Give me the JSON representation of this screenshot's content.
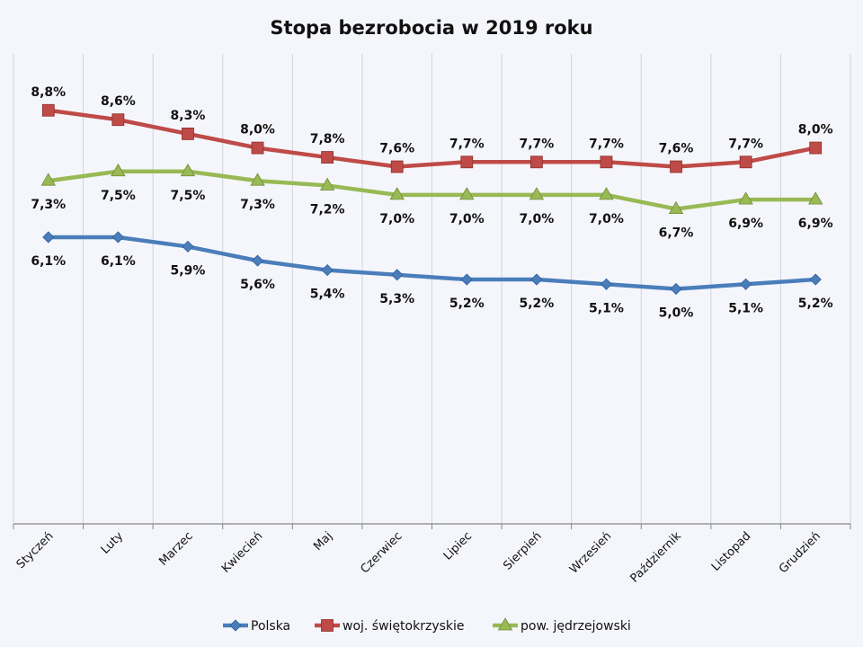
{
  "chart_data": {
    "type": "line",
    "title": "Stopa bezrobocia w 2019 roku",
    "xlabel": "",
    "ylabel": "",
    "ylim": [
      0,
      10
    ],
    "y_axis_visible": false,
    "grid": "vertical",
    "legend_position": "bottom",
    "categories": [
      "Styczeń",
      "Luty",
      "Marzec",
      "Kwiecień",
      "Maj",
      "Czerwiec",
      "Lipiec",
      "Sierpień",
      "Wrzesień",
      "Październik",
      "Listopad",
      "Grudzień"
    ],
    "series": [
      {
        "name": "Polska",
        "color": "#4a7ebb",
        "marker": "diamond",
        "label_position": "below",
        "values": [
          6.1,
          6.1,
          5.9,
          5.6,
          5.4,
          5.3,
          5.2,
          5.2,
          5.1,
          5.0,
          5.1,
          5.2
        ],
        "labels": [
          "6,1%",
          "6,1%",
          "5,9%",
          "5,6%",
          "5,4%",
          "5,3%",
          "5,2%",
          "5,2%",
          "5,1%",
          "5,0%",
          "5,1%",
          "5,2%"
        ]
      },
      {
        "name": "woj. świętokrzyskie",
        "color": "#be4b48",
        "marker": "square",
        "label_position": "above",
        "values": [
          8.8,
          8.6,
          8.3,
          8.0,
          7.8,
          7.6,
          7.7,
          7.7,
          7.7,
          7.6,
          7.7,
          8.0
        ],
        "labels": [
          "8,8%",
          "8,6%",
          "8,3%",
          "8,0%",
          "7,8%",
          "7,6%",
          "7,7%",
          "7,7%",
          "7,7%",
          "7,6%",
          "7,7%",
          "8,0%"
        ]
      },
      {
        "name": "pow. jędrzejowski",
        "color": "#98b954",
        "marker": "triangle",
        "label_position": "below",
        "values": [
          7.3,
          7.5,
          7.5,
          7.3,
          7.2,
          7.0,
          7.0,
          7.0,
          7.0,
          6.7,
          6.9,
          6.9
        ],
        "labels": [
          "7,3%",
          "7,5%",
          "7,5%",
          "7,3%",
          "7,2%",
          "7,0%",
          "7,0%",
          "7,0%",
          "7,0%",
          "6,7%",
          "6,9%",
          "6,9%"
        ]
      }
    ]
  }
}
